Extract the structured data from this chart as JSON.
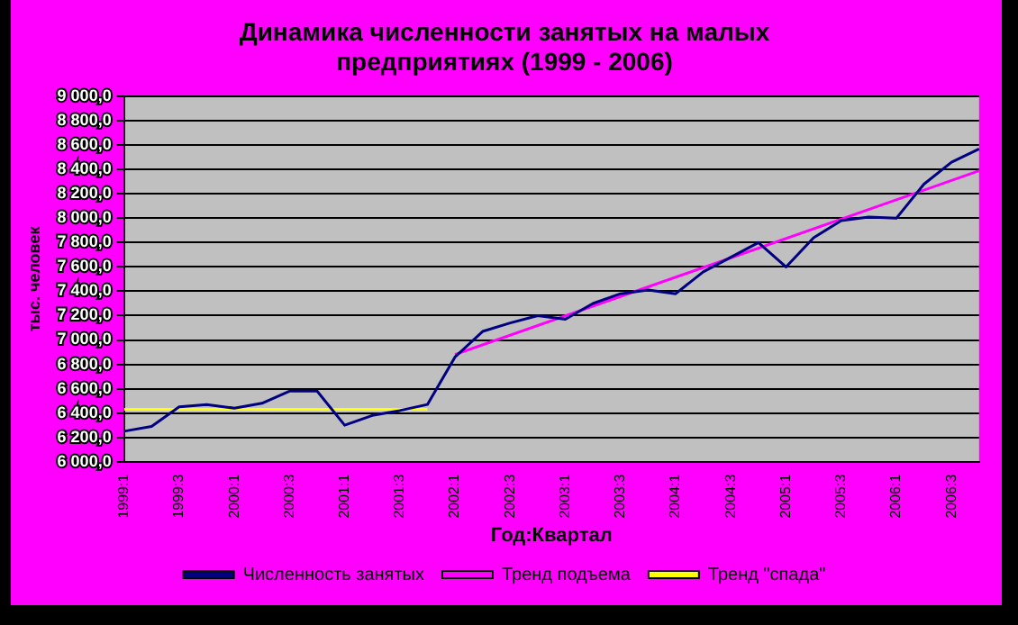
{
  "chart_data": {
    "type": "line",
    "title": "Динамика численности занятых на малых предприятиях (1999 - 2006)",
    "xlabel": "Год:Квартал",
    "ylabel": "тыс. человек",
    "categories": [
      "1999:1",
      null,
      "1999:3",
      null,
      "2000:1",
      null,
      "2000:3",
      null,
      "2001:1",
      null,
      "2001:3",
      null,
      "2002:1",
      null,
      "2002:3",
      null,
      "2003:1",
      null,
      "2003:3",
      null,
      "2004:1",
      null,
      "2004:3",
      null,
      "2005:1",
      null,
      "2005:3",
      null,
      "2006:1",
      null,
      "2006:3",
      null
    ],
    "series": [
      {
        "name": "Численность занятых",
        "color": "#000080",
        "values": [
          6250,
          6290,
          6450,
          6470,
          6440,
          6480,
          6580,
          6580,
          6300,
          6380,
          6420,
          6470,
          6860,
          7070,
          7140,
          7200,
          7170,
          7300,
          7380,
          7410,
          7380,
          7560,
          7680,
          7800,
          7600,
          7840,
          7980,
          8010,
          8000,
          8280,
          8460,
          8570
        ]
      },
      {
        "name": "Тренд подъема",
        "color": "#ff00ff",
        "values": [
          null,
          null,
          null,
          null,
          null,
          null,
          null,
          null,
          null,
          null,
          null,
          null,
          6880,
          null,
          null,
          null,
          null,
          null,
          null,
          null,
          null,
          null,
          null,
          null,
          null,
          null,
          null,
          null,
          null,
          null,
          null,
          8390
        ]
      },
      {
        "name": "Тренд \"спада\"",
        "color": "#ffff00",
        "values": [
          6430,
          null,
          null,
          null,
          null,
          null,
          null,
          null,
          null,
          null,
          null,
          6430,
          null,
          null,
          null,
          null,
          null,
          null,
          null,
          null,
          null,
          null,
          null,
          null,
          null,
          null,
          null,
          null,
          null,
          null,
          null,
          null
        ]
      }
    ],
    "ylim": [
      6000,
      9000
    ],
    "yticks": [
      {
        "value": 6000,
        "label": "6 000,0"
      },
      {
        "value": 6200,
        "label": "6 200,0"
      },
      {
        "value": 6400,
        "label": "6 400,0"
      },
      {
        "value": 6600,
        "label": "6 600,0"
      },
      {
        "value": 6800,
        "label": "6 800,0"
      },
      {
        "value": 7000,
        "label": "7 000,0"
      },
      {
        "value": 7200,
        "label": "7 200,0"
      },
      {
        "value": 7400,
        "label": "7 400,0"
      },
      {
        "value": 7600,
        "label": "7 600,0"
      },
      {
        "value": 7800,
        "label": "7 800,0"
      },
      {
        "value": 8000,
        "label": "8 000,0"
      },
      {
        "value": 8200,
        "label": "8 200,0"
      },
      {
        "value": 8400,
        "label": "8 400,0"
      },
      {
        "value": 8600,
        "label": "8 600,0"
      },
      {
        "value": 8800,
        "label": "8 800,0"
      },
      {
        "value": 9000,
        "label": "9 000,0"
      }
    ],
    "grid": "y",
    "legend": "bottom",
    "marker": "none",
    "line_style": "solid"
  }
}
